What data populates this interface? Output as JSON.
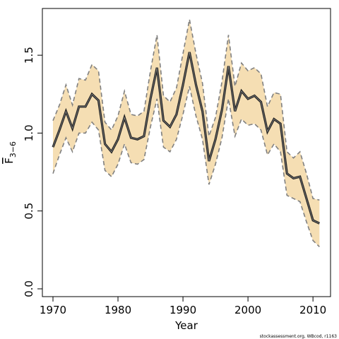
{
  "chart_data": {
    "type": "line",
    "x_label": "Year",
    "y_label": "F",
    "y_label_sub": "3−6",
    "credit": "stockassessment.org, WBcod, r1163",
    "x": [
      1970,
      1971,
      1972,
      1973,
      1974,
      1975,
      1976,
      1977,
      1978,
      1979,
      1980,
      1981,
      1982,
      1983,
      1984,
      1985,
      1986,
      1987,
      1988,
      1989,
      1990,
      1991,
      1992,
      1993,
      1994,
      1995,
      1996,
      1997,
      1998,
      1999,
      2000,
      2001,
      2002,
      2003,
      2004,
      2005,
      2006,
      2007,
      2008,
      2009,
      2010,
      2011
    ],
    "values": [
      0.91,
      1.02,
      1.14,
      1.03,
      1.17,
      1.17,
      1.25,
      1.21,
      0.93,
      0.88,
      0.96,
      1.1,
      0.97,
      0.96,
      0.98,
      1.22,
      1.42,
      1.08,
      1.04,
      1.12,
      1.31,
      1.52,
      1.31,
      1.14,
      0.82,
      0.96,
      1.15,
      1.43,
      1.14,
      1.27,
      1.22,
      1.24,
      1.2,
      1.01,
      1.09,
      1.06,
      0.74,
      0.71,
      0.72,
      0.58,
      0.44,
      0.42
    ],
    "upper": [
      1.08,
      1.18,
      1.31,
      1.18,
      1.35,
      1.34,
      1.44,
      1.4,
      1.07,
      1.02,
      1.11,
      1.27,
      1.12,
      1.11,
      1.14,
      1.4,
      1.63,
      1.24,
      1.2,
      1.29,
      1.51,
      1.73,
      1.51,
      1.32,
      0.98,
      1.1,
      1.33,
      1.63,
      1.3,
      1.45,
      1.4,
      1.42,
      1.38,
      1.17,
      1.26,
      1.25,
      0.88,
      0.84,
      0.88,
      0.74,
      0.58,
      0.57
    ],
    "lower": [
      0.74,
      0.86,
      0.97,
      0.88,
      1.0,
      1.0,
      1.07,
      1.02,
      0.76,
      0.72,
      0.8,
      0.93,
      0.81,
      0.8,
      0.83,
      1.04,
      1.22,
      0.91,
      0.88,
      0.96,
      1.12,
      1.3,
      1.11,
      0.96,
      0.67,
      0.8,
      0.97,
      1.22,
      0.98,
      1.09,
      1.05,
      1.06,
      1.02,
      0.86,
      0.93,
      0.88,
      0.6,
      0.58,
      0.56,
      0.43,
      0.31,
      0.27
    ],
    "color": "#222222",
    "band_color": "#f5deb3",
    "band_line_color": "#808080",
    "xlim": [
      1968.37,
      2012.7
    ],
    "ylim": [
      -0.05,
      1.8
    ],
    "xticks": [
      1970,
      1980,
      1990,
      2000,
      2010
    ],
    "yticks": [
      {
        "value": 0,
        "label": "0.0"
      },
      0.5,
      {
        "value": 1,
        "label": "1.0"
      },
      1.5
    ],
    "grid": false
  }
}
